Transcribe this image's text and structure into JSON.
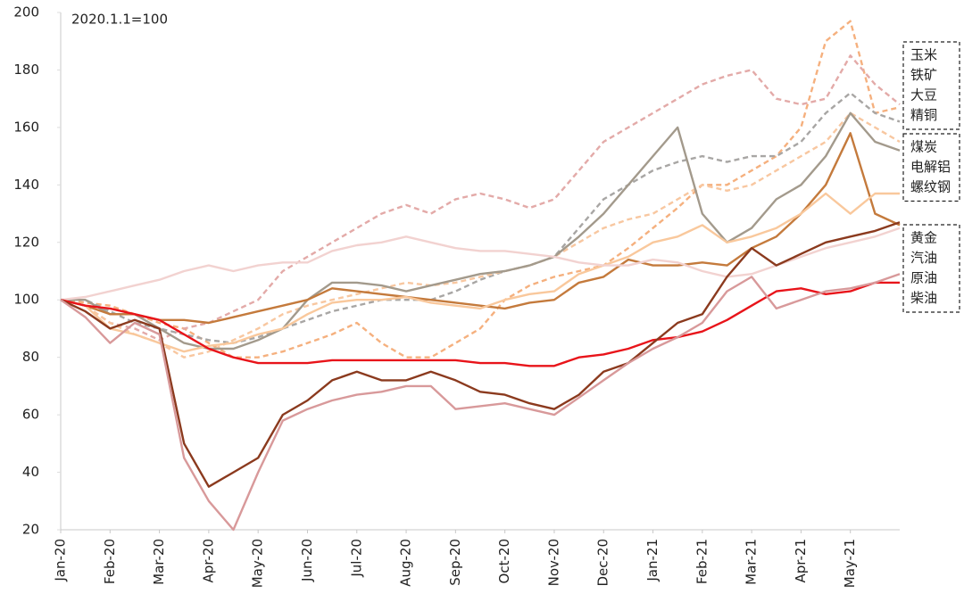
{
  "chart_data": {
    "type": "line",
    "annotation": "2020.1.1=100",
    "categories": [
      "Jan-20",
      null,
      "Feb-20",
      null,
      "Mar-20",
      null,
      "Apr-20",
      null,
      "May-20",
      null,
      "Jun-20",
      null,
      "Jul-20",
      null,
      "Aug-20",
      null,
      "Sep-20",
      null,
      "Oct-20",
      null,
      "Nov-20",
      null,
      "Dec-20",
      null,
      "Jan-21",
      null,
      "Feb-21",
      null,
      "Mar-21",
      null,
      "Apr-21",
      null,
      "May-21",
      null,
      null
    ],
    "ylim": [
      20,
      200
    ],
    "yticks": [
      20,
      40,
      60,
      80,
      100,
      120,
      140,
      160,
      180,
      200
    ],
    "grid": false,
    "series": [
      {
        "name": "玉米",
        "color": "#f5b07e",
        "dash": true,
        "values": [
          100,
          99,
          98,
          95,
          92,
          90,
          85,
          80,
          80,
          82,
          85,
          88,
          92,
          85,
          80,
          80,
          85,
          90,
          100,
          105,
          108,
          110,
          112,
          118,
          125,
          132,
          140,
          140,
          145,
          150,
          160,
          190,
          197,
          165,
          167
        ]
      },
      {
        "name": "铁矿",
        "color": "#e3aaa8",
        "dash": true,
        "values": [
          100,
          98,
          92,
          90,
          86,
          90,
          92,
          96,
          100,
          110,
          115,
          120,
          125,
          130,
          133,
          130,
          135,
          137,
          135,
          132,
          135,
          145,
          155,
          160,
          165,
          170,
          175,
          178,
          180,
          170,
          168,
          170,
          185,
          175,
          168
        ]
      },
      {
        "name": "大豆",
        "color": "#a8a6a4",
        "dash": true,
        "values": [
          100,
          100,
          96,
          92,
          90,
          88,
          86,
          85,
          87,
          90,
          93,
          96,
          98,
          100,
          100,
          100,
          103,
          107,
          110,
          112,
          115,
          125,
          135,
          140,
          145,
          148,
          150,
          148,
          150,
          150,
          155,
          165,
          172,
          165,
          162
        ]
      },
      {
        "name": "精铜",
        "color": "#f8c7a0",
        "dash": true,
        "values": [
          100,
          98,
          92,
          88,
          85,
          80,
          82,
          86,
          90,
          95,
          98,
          100,
          102,
          104,
          106,
          105,
          106,
          108,
          110,
          112,
          115,
          120,
          125,
          128,
          130,
          135,
          140,
          138,
          140,
          145,
          150,
          155,
          165,
          160,
          155
        ]
      },
      {
        "name": "煤炭",
        "color": "#a39a8c",
        "dash": false,
        "values": [
          100,
          100,
          95,
          95,
          90,
          85,
          83,
          83,
          86,
          90,
          100,
          106,
          106,
          105,
          103,
          105,
          107,
          109,
          110,
          112,
          115,
          122,
          130,
          140,
          150,
          160,
          130,
          120,
          125,
          135,
          140,
          150,
          165,
          155,
          152
        ]
      },
      {
        "name": "电解铝",
        "color": "#c47a3c",
        "dash": false,
        "values": [
          100,
          98,
          95,
          95,
          93,
          93,
          92,
          94,
          96,
          98,
          100,
          104,
          103,
          102,
          101,
          100,
          99,
          98,
          97,
          99,
          100,
          106,
          108,
          114,
          112,
          112,
          113,
          112,
          118,
          122,
          130,
          140,
          158,
          130,
          126
        ]
      },
      {
        "name": "螺纹钢",
        "color": "#f9c89c",
        "dash": false,
        "values": [
          100,
          98,
          90,
          88,
          85,
          82,
          84,
          85,
          88,
          90,
          95,
          99,
          100,
          100,
          101,
          99,
          98,
          97,
          100,
          102,
          103,
          109,
          112,
          115,
          120,
          122,
          126,
          120,
          122,
          125,
          130,
          137,
          130,
          137,
          137
        ]
      },
      {
        "name": "黄金",
        "color": "#f2d2d0",
        "dash": false,
        "values": [
          100,
          101,
          103,
          105,
          107,
          110,
          112,
          110,
          112,
          113,
          113,
          117,
          119,
          120,
          122,
          120,
          118,
          117,
          117,
          116,
          115,
          113,
          112,
          112,
          114,
          113,
          110,
          108,
          109,
          112,
          115,
          118,
          120,
          122,
          125
        ]
      },
      {
        "name": "汽油",
        "color": "#e8141a",
        "dash": false,
        "values": [
          100,
          98,
          97,
          95,
          93,
          88,
          83,
          80,
          78,
          78,
          78,
          79,
          79,
          79,
          79,
          79,
          79,
          78,
          78,
          77,
          77,
          80,
          81,
          83,
          86,
          87,
          89,
          93,
          98,
          103,
          104,
          102,
          103,
          106,
          106
        ]
      },
      {
        "name": "原油",
        "color": "#8b3a1e",
        "dash": false,
        "values": [
          100,
          96,
          90,
          93,
          90,
          50,
          35,
          40,
          45,
          60,
          65,
          72,
          75,
          72,
          72,
          75,
          72,
          68,
          67,
          64,
          62,
          67,
          75,
          78,
          85,
          92,
          95,
          108,
          118,
          112,
          116,
          120,
          122,
          124,
          127
        ]
      },
      {
        "name": "柴油",
        "color": "#d8999a",
        "dash": false,
        "values": [
          100,
          94,
          85,
          92,
          88,
          45,
          30,
          20,
          40,
          58,
          62,
          65,
          67,
          68,
          70,
          70,
          62,
          63,
          64,
          62,
          60,
          66,
          72,
          78,
          83,
          87,
          92,
          103,
          108,
          97,
          100,
          103,
          104,
          106,
          109
        ]
      }
    ]
  }
}
